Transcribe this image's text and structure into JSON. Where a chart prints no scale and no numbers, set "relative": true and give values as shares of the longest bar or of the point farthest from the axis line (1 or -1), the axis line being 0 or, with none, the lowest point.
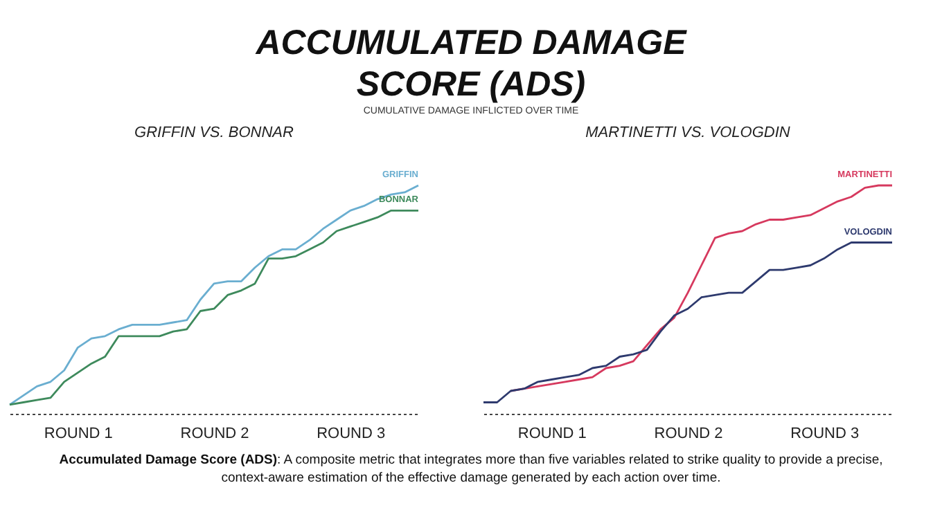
{
  "chart_data": [
    {
      "type": "other",
      "title": "ACCUMULATED DAMAGE SCORE (ADS)",
      "subtitle": "CUMULATIVE DAMAGE INFLICTED OVER TIME",
      "annotations": [
        "Accumulated Damage Score (ADS): A composite metric that integrates more than five variables related to strike quality to provide a precise, context-aware estimation of the effective damage generated by each action over time."
      ]
    },
    {
      "type": "line",
      "title": "GRIFFIN VS. BONNAR",
      "relative": true,
      "tick_labels": "x",
      "categories": [
        null,
        null,
        null,
        null,
        null,
        "ROUND 1",
        null,
        null,
        null,
        null,
        null,
        null,
        null,
        null,
        null,
        "ROUND 2",
        null,
        null,
        null,
        null,
        null,
        null,
        null,
        null,
        null,
        "ROUND 3",
        null,
        null,
        null,
        null,
        null
      ],
      "series": [
        {
          "name": "GRIFFIN",
          "color": "#6aaed0",
          "values": [
            0.04,
            0.08,
            0.12,
            0.14,
            0.19,
            0.29,
            0.33,
            0.34,
            0.37,
            0.39,
            0.39,
            0.39,
            0.4,
            0.41,
            0.5,
            0.57,
            0.58,
            0.58,
            0.64,
            0.69,
            0.72,
            0.72,
            0.76,
            0.81,
            0.85,
            0.89,
            0.91,
            0.94,
            0.96,
            0.97,
            1
          ]
        },
        {
          "name": "BONNAR",
          "color": "#3e8a5c",
          "values": [
            0.04,
            0.05,
            0.06,
            0.07,
            0.14,
            0.18,
            0.22,
            0.25,
            0.34,
            0.34,
            0.34,
            0.34,
            0.36,
            0.37,
            0.45,
            0.46,
            0.52,
            0.54,
            0.57,
            0.68,
            0.68,
            0.69,
            0.72,
            0.75,
            0.8,
            0.82,
            0.84,
            0.86,
            0.89,
            0.89,
            0.89
          ]
        }
      ]
    },
    {
      "type": "line",
      "title": "MARTINETTI VS. VOLOGDIN",
      "relative": true,
      "tick_labels": "x",
      "categories": [
        null,
        null,
        null,
        null,
        null,
        "ROUND 1",
        null,
        null,
        null,
        null,
        null,
        null,
        null,
        null,
        null,
        "ROUND 2",
        null,
        null,
        null,
        null,
        null,
        null,
        null,
        null,
        null,
        "ROUND 3",
        null,
        null,
        null,
        null,
        null
      ],
      "series": [
        {
          "name": "MARTINETTI",
          "color": "#d6395e",
          "values": [
            null,
            null,
            0.1,
            0.11,
            0.12,
            0.13,
            0.14,
            0.15,
            0.16,
            0.2,
            0.21,
            0.23,
            0.3,
            0.37,
            0.42,
            0.53,
            0.65,
            0.77,
            0.79,
            0.8,
            0.83,
            0.85,
            0.85,
            0.86,
            0.87,
            0.9,
            0.93,
            0.95,
            0.99,
            1,
            1
          ]
        },
        {
          "name": "VOLOGDIN",
          "color": "#2e3a6e",
          "values": [
            0.05,
            0.05,
            0.1,
            0.11,
            0.14,
            0.15,
            0.16,
            0.17,
            0.2,
            0.21,
            0.25,
            0.26,
            0.28,
            0.36,
            0.43,
            0.46,
            0.51,
            0.52,
            0.53,
            0.53,
            0.58,
            0.63,
            0.63,
            0.64,
            0.65,
            0.68,
            0.72,
            0.75,
            0.75,
            0.75,
            0.75
          ]
        }
      ]
    }
  ]
}
